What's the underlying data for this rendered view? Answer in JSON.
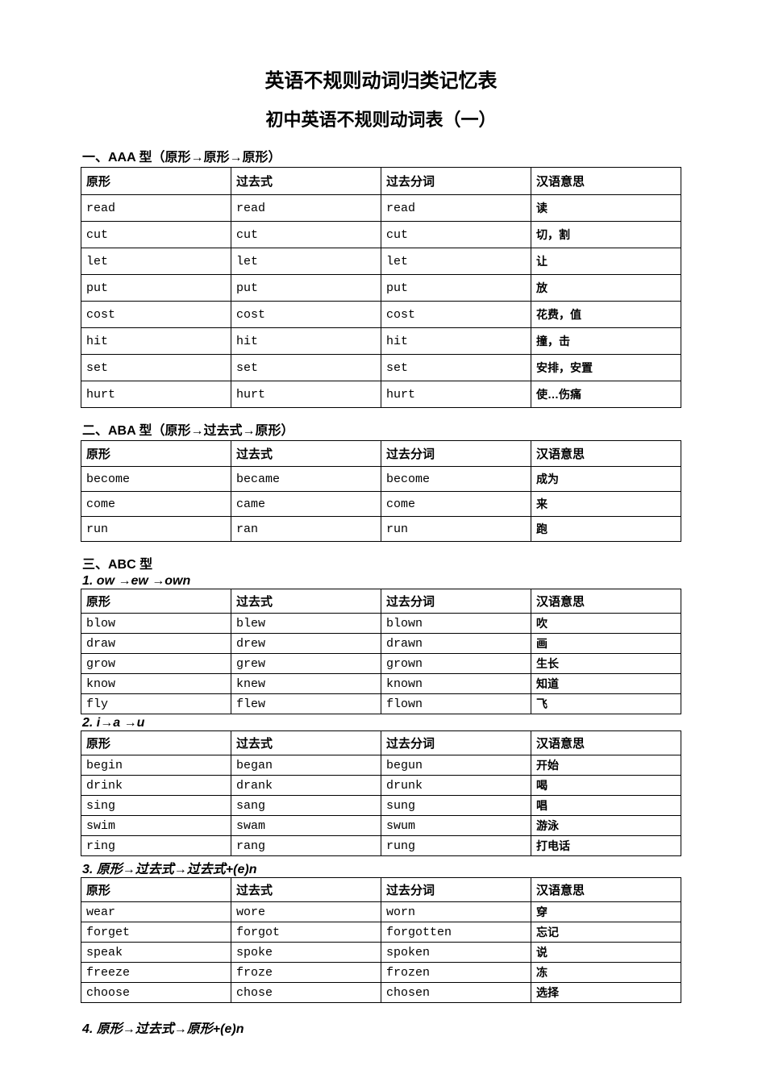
{
  "titles": {
    "main": "英语不规则动词归类记忆表",
    "sub": "初中英语不规则动词表（一）"
  },
  "common_headers": [
    "原形",
    "过去式",
    "过去分词",
    "汉语意思"
  ],
  "sections": [
    {
      "heading": "一、AAA 型（原形→原形→原形）",
      "style": "loose",
      "rows": [
        [
          "read",
          "read",
          "read",
          "读"
        ],
        [
          "cut",
          "cut",
          "cut",
          "切，割"
        ],
        [
          "let",
          "let",
          "let",
          "让"
        ],
        [
          "put",
          "put",
          "put",
          "放"
        ],
        [
          "cost",
          "cost",
          "cost",
          "花费，值"
        ],
        [
          "hit",
          "hit",
          "hit",
          "撞，击"
        ],
        [
          "set",
          "set",
          "set",
          "安排，安置"
        ],
        [
          "hurt",
          "hurt",
          "hurt",
          "使…伤痛"
        ]
      ]
    },
    {
      "heading": "二、ABA 型（原形→过去式→原形）",
      "style": "mid",
      "rows": [
        [
          "become",
          "became",
          "become",
          "成为"
        ],
        [
          "come",
          "came",
          "come",
          "来"
        ],
        [
          "run",
          "ran",
          "run",
          "跑"
        ]
      ]
    }
  ],
  "abc_group": {
    "heading": "三、ABC 型",
    "subsections": [
      {
        "pattern": "1.  ow →ew →own",
        "rows": [
          [
            "blow",
            "blew",
            "blown",
            "吹"
          ],
          [
            "draw",
            "drew",
            "drawn",
            "画"
          ],
          [
            "grow",
            "grew",
            "grown",
            "生长"
          ],
          [
            "know",
            "knew",
            "known",
            "知道"
          ],
          [
            "fly",
            "flew",
            "flown",
            "飞"
          ]
        ]
      },
      {
        "pattern": "2.  i→a →u",
        "rows": [
          [
            "begin",
            "began",
            "begun",
            "开始"
          ],
          [
            "drink",
            "drank",
            "drunk",
            "喝"
          ],
          [
            "sing",
            "sang",
            "sung",
            "唱"
          ],
          [
            "swim",
            "swam",
            "swum",
            "游泳"
          ],
          [
            "ring",
            "rang",
            "rung",
            "打电话"
          ]
        ]
      },
      {
        "pattern": "3.  原形→过去式→过去式+(e)n",
        "rows": [
          [
            "wear",
            "wore",
            "worn",
            "穿"
          ],
          [
            "forget",
            "forgot",
            "forgotten",
            "忘记"
          ],
          [
            "speak",
            "spoke",
            "spoken",
            "说"
          ],
          [
            "freeze",
            "froze",
            "frozen",
            "冻"
          ],
          [
            "choose",
            "chose",
            "chosen",
            "选择"
          ]
        ]
      }
    ],
    "trailing_pattern": "4.  原形→过去式→原形+(e)n"
  },
  "colors": {
    "background": "#ffffff",
    "text": "#000000",
    "border": "#000000"
  },
  "layout": {
    "col_widths_pct": [
      25,
      25,
      25,
      25
    ]
  }
}
